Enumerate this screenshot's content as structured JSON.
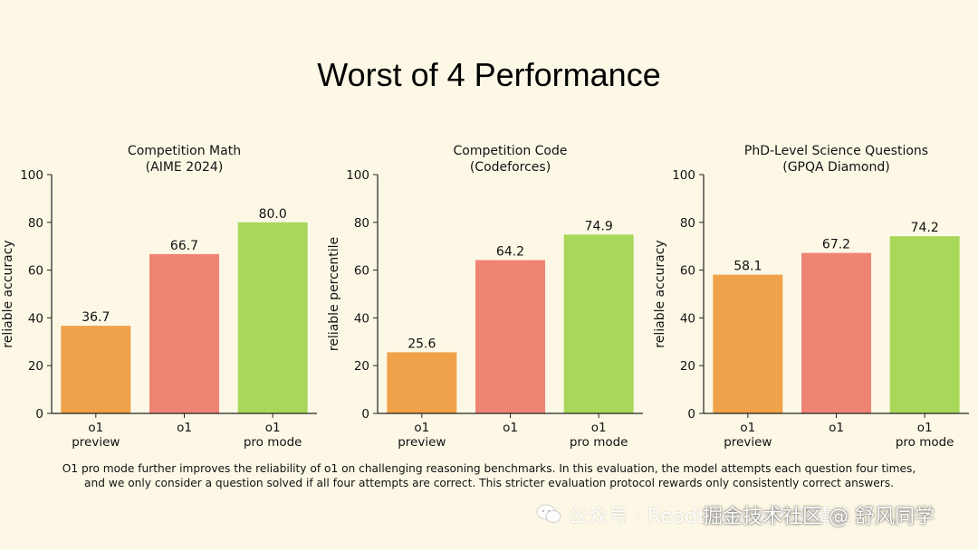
{
  "title": "Worst of 4 Performance",
  "chart_data": [
    {
      "type": "bar",
      "title": "Competition Math",
      "subtitle": "(AIME 2024)",
      "ylabel": "reliable accuracy",
      "ylim": [
        0,
        100
      ],
      "yticks": [
        "0",
        "20",
        "40",
        "60",
        "80",
        "100"
      ],
      "categories": [
        "o1\npreview",
        "o1",
        "o1\npro mode"
      ],
      "values": [
        36.7,
        66.7,
        80.0
      ],
      "labels": [
        "36.7",
        "66.7",
        "80.0"
      ],
      "colors": [
        "#f0a24a",
        "#f08474",
        "#a8d85a"
      ]
    },
    {
      "type": "bar",
      "title": "Competition Code",
      "subtitle": "(Codeforces)",
      "ylabel": "reliable percentile",
      "ylim": [
        0,
        100
      ],
      "yticks": [
        "0",
        "20",
        "40",
        "60",
        "80",
        "100"
      ],
      "categories": [
        "o1\npreview",
        "o1",
        "o1\npro mode"
      ],
      "values": [
        25.6,
        64.2,
        74.9
      ],
      "labels": [
        "25.6",
        "64.2",
        "74.9"
      ],
      "colors": [
        "#f0a24a",
        "#f08474",
        "#a8d85a"
      ]
    },
    {
      "type": "bar",
      "title": "PhD-Level Science Questions",
      "subtitle": "(GPQA Diamond)",
      "ylabel": "reliable accuracy",
      "ylim": [
        0,
        100
      ],
      "yticks": [
        "0",
        "20",
        "40",
        "60",
        "80",
        "100"
      ],
      "categories": [
        "o1\npreview",
        "o1",
        "o1\npro mode"
      ],
      "values": [
        58.1,
        67.2,
        74.2
      ],
      "labels": [
        "58.1",
        "67.2",
        "74.2"
      ],
      "colors": [
        "#f0a24a",
        "#f08474",
        "#a8d85a"
      ]
    }
  ],
  "caption": {
    "line1": "O1 pro mode further improves the reliability of o1 on challenging reasoning benchmarks. In this evaluation, the model attempts each question four times,",
    "line2": "and we only consider a question solved if all four attempts are correct. This stricter evaluation protocol rewards only consistently correct answers."
  },
  "watermark": {
    "account": "公众号 · ReadLecture内容精选",
    "credit": "掘金技术社区 @ 舒风同学"
  }
}
